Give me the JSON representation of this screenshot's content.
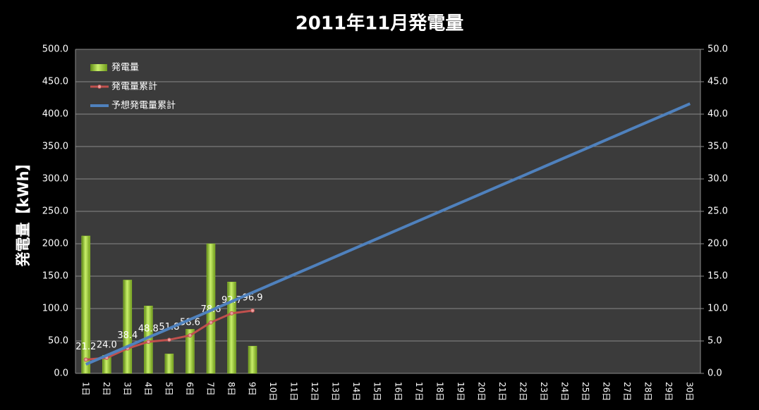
{
  "chart_data": {
    "type": "combo",
    "title": "2011年11月発電量",
    "y_label": "発電量【kWh】",
    "categories": [
      "1日",
      "2日",
      "3日",
      "4日",
      "5日",
      "6日",
      "7日",
      "8日",
      "9日",
      "10日",
      "11日",
      "12日",
      "13日",
      "14日",
      "15日",
      "16日",
      "17日",
      "18日",
      "19日",
      "20日",
      "21日",
      "22日",
      "23日",
      "24日",
      "25日",
      "26日",
      "27日",
      "28日",
      "29日",
      "30日"
    ],
    "ylim": [
      0,
      500
    ],
    "yticks": [
      {
        "value": 0,
        "label": "0.0"
      },
      {
        "value": 50,
        "label": "50.0"
      },
      {
        "value": 100,
        "label": "100.0"
      },
      {
        "value": 150,
        "label": "150.0"
      },
      {
        "value": 200,
        "label": "200.0"
      },
      {
        "value": 250,
        "label": "250.0"
      },
      {
        "value": 300,
        "label": "300.0"
      },
      {
        "value": 350,
        "label": "350.0"
      },
      {
        "value": 400,
        "label": "400.0"
      },
      {
        "value": 450,
        "label": "450.0"
      },
      {
        "value": 500,
        "label": "500.0"
      }
    ],
    "y2lim": [
      0,
      50
    ],
    "y2ticks": [
      {
        "value": 0,
        "label": "0.0"
      },
      {
        "value": 5,
        "label": "5.0"
      },
      {
        "value": 10,
        "label": "10.0"
      },
      {
        "value": 15,
        "label": "15.0"
      },
      {
        "value": 20,
        "label": "20.0"
      },
      {
        "value": 25,
        "label": "25.0"
      },
      {
        "value": 30,
        "label": "30.0"
      },
      {
        "value": 35,
        "label": "35.0"
      },
      {
        "value": 40,
        "label": "40.0"
      },
      {
        "value": 45,
        "label": "45.0"
      },
      {
        "value": 50,
        "label": "50.0"
      }
    ],
    "grid": true,
    "legend": "upper left",
    "series": [
      {
        "name": "発電量",
        "type": "bar",
        "axis": "y2",
        "color": "#9acd32",
        "values": [
          21.2,
          2.8,
          14.4,
          10.4,
          3.0,
          6.8,
          20.0,
          14.1,
          4.2,
          null,
          null,
          null,
          null,
          null,
          null,
          null,
          null,
          null,
          null,
          null,
          null,
          null,
          null,
          null,
          null,
          null,
          null,
          null,
          null,
          null
        ]
      },
      {
        "name": "発電量累計",
        "type": "line",
        "color": "#c0504d",
        "values": [
          21.2,
          24.0,
          38.4,
          48.8,
          51.8,
          58.6,
          78.6,
          92.7,
          96.9,
          null,
          null,
          null,
          null,
          null,
          null,
          null,
          null,
          null,
          null,
          null,
          null,
          null,
          null,
          null,
          null,
          null,
          null,
          null,
          null,
          null
        ],
        "value_labels": [
          "21.2",
          "24.0",
          "38.4",
          "48.8",
          "51.8",
          "58.6",
          "78.6",
          "92.7",
          "96.9",
          null,
          null,
          null,
          null,
          null,
          null,
          null,
          null,
          null,
          null,
          null,
          null,
          null,
          null,
          null,
          null,
          null,
          null,
          null,
          null,
          null
        ]
      },
      {
        "name": "予想発電量累計",
        "type": "line",
        "color": "#4f81bd",
        "values": [
          13.9,
          27.7,
          41.6,
          55.5,
          69.3,
          83.2,
          97.1,
          111.0,
          124.8,
          138.7,
          152.6,
          166.4,
          180.3,
          194.2,
          208.0,
          221.9,
          235.8,
          249.7,
          263.5,
          277.4,
          291.3,
          305.1,
          319.0,
          332.9,
          346.7,
          360.6,
          374.5,
          388.4,
          402.2,
          416.1
        ]
      }
    ]
  }
}
